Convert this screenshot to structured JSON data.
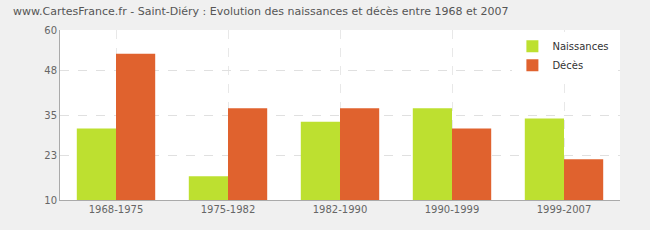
{
  "chart_data": {
    "type": "bar",
    "title": "www.CartesFrance.fr - Saint-Diéry : Evolution des naissances et décès entre 1968 et 2007",
    "categories": [
      "1968-1975",
      "1975-1982",
      "1982-1990",
      "1990-1999",
      "1999-2007"
    ],
    "series": [
      {
        "name": "Naissances",
        "color": "#bde030",
        "values": [
          31,
          17,
          33,
          37,
          34
        ]
      },
      {
        "name": "Décès",
        "color": "#e0622e",
        "values": [
          53,
          37,
          37,
          31,
          22
        ]
      }
    ],
    "ylim": [
      10,
      60
    ],
    "yticks": [
      10,
      23,
      35,
      48,
      60
    ],
    "grid": true,
    "legend": "top-right"
  }
}
